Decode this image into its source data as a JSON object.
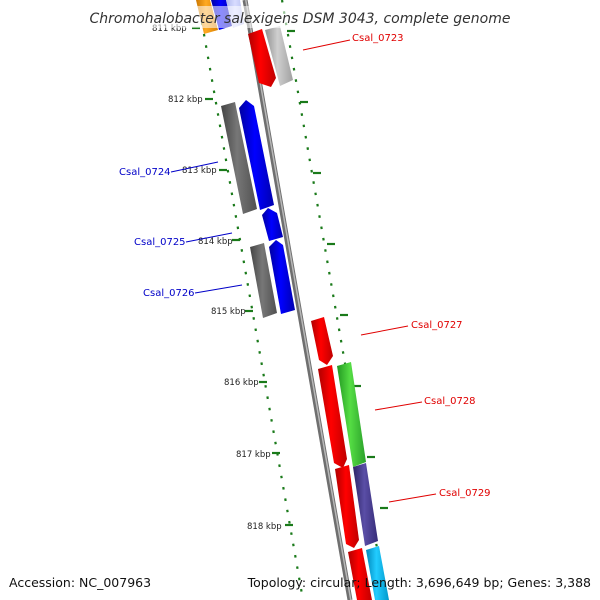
{
  "title": "Chromohalobacter salexigens DSM 3043, complete genome",
  "footer": {
    "accession": "Accession: NC_007963",
    "topology": "Topology: circular; Length: 3,696,649 bp; Genes: 3,388"
  },
  "ticks": [
    "811 kbp",
    "812 kbp",
    "813 kbp",
    "814 kbp",
    "815 kbp",
    "816 kbp",
    "817 kbp",
    "818 kbp"
  ],
  "genes": [
    {
      "id": "Csal_0723",
      "strand": "reverse",
      "label_color": "#e00000"
    },
    {
      "id": "Csal_0724",
      "strand": "forward",
      "label_color": "#0000c8"
    },
    {
      "id": "Csal_0725",
      "strand": "forward",
      "label_color": "#0000c8"
    },
    {
      "id": "Csal_0726",
      "strand": "forward",
      "label_color": "#0000c8"
    },
    {
      "id": "Csal_0727",
      "strand": "reverse",
      "label_color": "#e00000"
    },
    {
      "id": "Csal_0728",
      "strand": "reverse",
      "label_color": "#e00000"
    },
    {
      "id": "Csal_0729",
      "strand": "reverse",
      "label_color": "#e00000"
    }
  ],
  "colors": {
    "backbone": "#888888",
    "tick_dots": "#1a7a1a",
    "forward_cds": "#0000ff",
    "forward_shadow": "#666666",
    "reverse_cds": "#ff0000",
    "reverse_partner_gray": "#b0b0b0",
    "green_feature": "#44cc44",
    "purple_feature": "#4a3d8f",
    "cyan_feature": "#11bbee",
    "orange_feature": "#ff9900"
  }
}
